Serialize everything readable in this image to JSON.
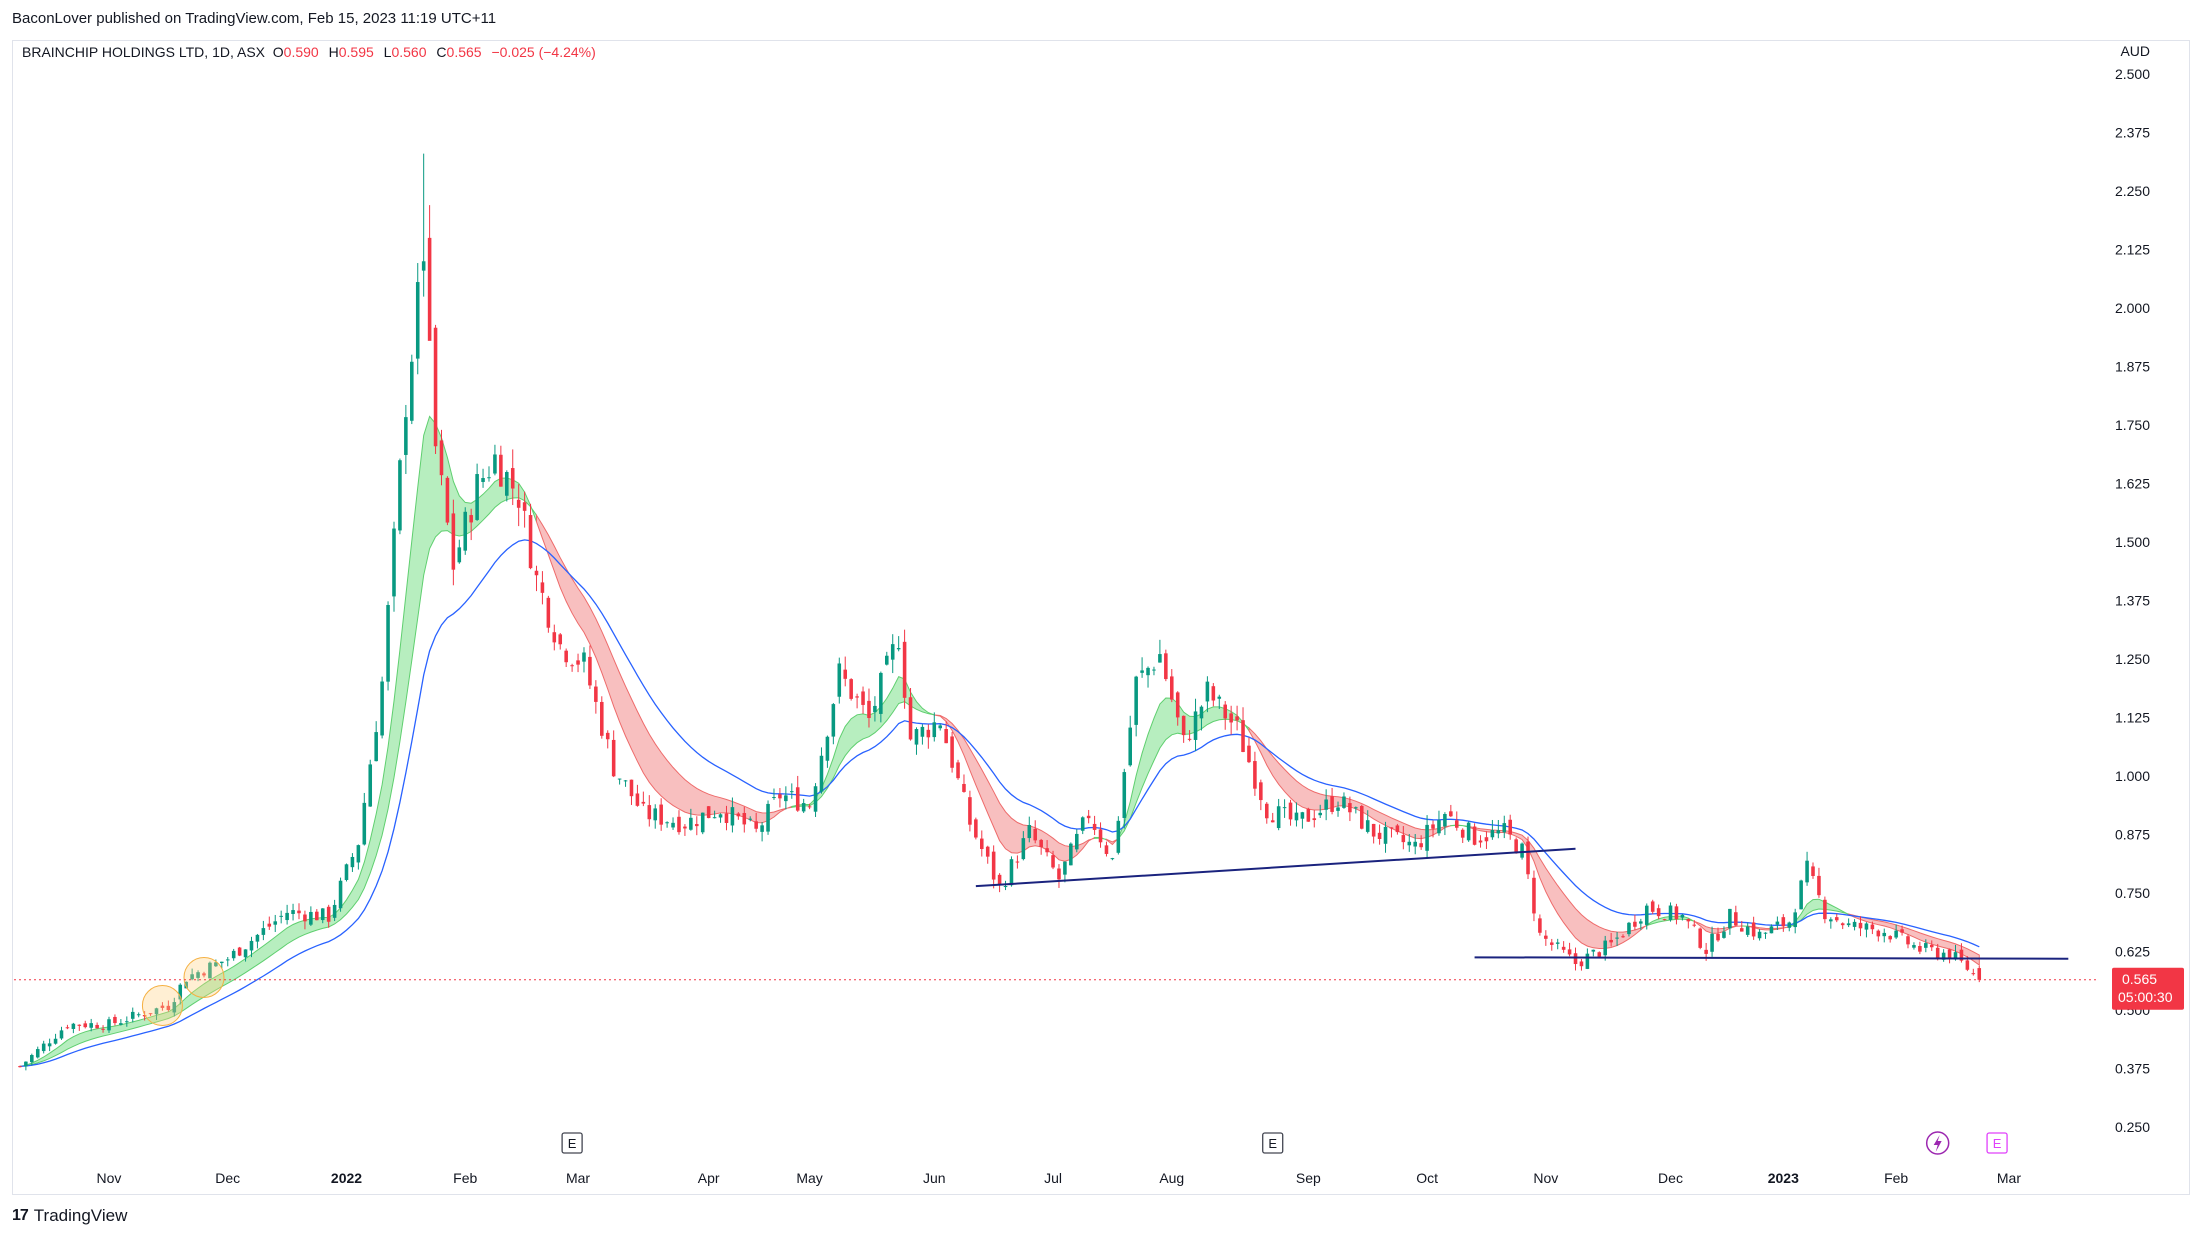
{
  "header": {
    "publisher": "BaconLover published on TradingView.com, Feb 15, 2023 11:19 UTC+11"
  },
  "legend": {
    "symbol": "BRAINCHIP HOLDINGS LTD, 1D, ASX",
    "open_label": "O",
    "open": "0.590",
    "high_label": "H",
    "high": "0.595",
    "low_label": "L",
    "low": "0.560",
    "close_label": "C",
    "close": "0.565",
    "change": "−0.025 (−4.24%)"
  },
  "footer": {
    "brand": "TradingView",
    "logo_icon": "tradingview-logo-icon"
  },
  "colors": {
    "up": "#089981",
    "down": "#f23645",
    "ma": "#2962ff",
    "trend": "#1a237e",
    "band_up": "#7be08a",
    "band_down": "#f28b8b"
  },
  "price_label": {
    "value": "0.565",
    "countdown": "05:00:30"
  },
  "markers": {
    "earnings_label": "E",
    "dividend_icon": "lightning-icon"
  },
  "chart_data": {
    "type": "candlestick",
    "currency": "AUD",
    "y_ticks": [
      "2.500",
      "2.375",
      "2.250",
      "2.125",
      "2.000",
      "1.875",
      "1.750",
      "1.625",
      "1.500",
      "1.375",
      "1.250",
      "1.125",
      "1.000",
      "0.875",
      "0.750",
      "0.625",
      "0.500",
      "0.375",
      "0.250"
    ],
    "ylim": [
      0.18,
      2.53
    ],
    "x_labels": [
      {
        "label": "Nov",
        "i": 15,
        "bold": false
      },
      {
        "label": "Dec",
        "i": 35,
        "bold": false
      },
      {
        "label": "2022",
        "i": 55,
        "bold": true
      },
      {
        "label": "Feb",
        "i": 75,
        "bold": false
      },
      {
        "label": "Mar",
        "i": 94,
        "bold": false
      },
      {
        "label": "Apr",
        "i": 116,
        "bold": false
      },
      {
        "label": "May",
        "i": 133,
        "bold": false
      },
      {
        "label": "Jun",
        "i": 154,
        "bold": false
      },
      {
        "label": "Jul",
        "i": 174,
        "bold": false
      },
      {
        "label": "Aug",
        "i": 194,
        "bold": false
      },
      {
        "label": "Sep",
        "i": 217,
        "bold": false
      },
      {
        "label": "Oct",
        "i": 237,
        "bold": false
      },
      {
        "label": "Nov",
        "i": 257,
        "bold": false
      },
      {
        "label": "Dec",
        "i": 278,
        "bold": false
      },
      {
        "label": "2023",
        "i": 297,
        "bold": true
      },
      {
        "label": "Feb",
        "i": 316,
        "bold": false
      },
      {
        "label": "Mar",
        "i": 335,
        "bold": false
      }
    ],
    "x_range": [
      -1,
      350
    ],
    "close_keypoints": [
      [
        0,
        0.38
      ],
      [
        8,
        0.47
      ],
      [
        15,
        0.47
      ],
      [
        25,
        0.51
      ],
      [
        28,
        0.57
      ],
      [
        35,
        0.61
      ],
      [
        45,
        0.71
      ],
      [
        52,
        0.7
      ],
      [
        57,
        0.86
      ],
      [
        61,
        1.2
      ],
      [
        65,
        1.8
      ],
      [
        68,
        2.12
      ],
      [
        70,
        1.7
      ],
      [
        73,
        1.45
      ],
      [
        77,
        1.62
      ],
      [
        80,
        1.68
      ],
      [
        84,
        1.6
      ],
      [
        87,
        1.42
      ],
      [
        91,
        1.28
      ],
      [
        95,
        1.24
      ],
      [
        100,
        1.02
      ],
      [
        105,
        0.92
      ],
      [
        112,
        0.9
      ],
      [
        118,
        0.93
      ],
      [
        124,
        0.88
      ],
      [
        128,
        0.96
      ],
      [
        133,
        0.94
      ],
      [
        138,
        1.22
      ],
      [
        143,
        1.12
      ],
      [
        148,
        1.3
      ],
      [
        150,
        1.08
      ],
      [
        155,
        1.12
      ],
      [
        160,
        0.9
      ],
      [
        165,
        0.76
      ],
      [
        170,
        0.88
      ],
      [
        175,
        0.78
      ],
      [
        180,
        0.92
      ],
      [
        184,
        0.82
      ],
      [
        188,
        1.2
      ],
      [
        192,
        1.26
      ],
      [
        196,
        1.07
      ],
      [
        200,
        1.18
      ],
      [
        205,
        1.1
      ],
      [
        210,
        0.93
      ],
      [
        215,
        0.9
      ],
      [
        222,
        0.95
      ],
      [
        228,
        0.88
      ],
      [
        235,
        0.85
      ],
      [
        240,
        0.92
      ],
      [
        245,
        0.87
      ],
      [
        250,
        0.88
      ],
      [
        253,
        0.84
      ],
      [
        256,
        0.66
      ],
      [
        262,
        0.6
      ],
      [
        268,
        0.64
      ],
      [
        274,
        0.72
      ],
      [
        280,
        0.7
      ],
      [
        284,
        0.63
      ],
      [
        288,
        0.7
      ],
      [
        293,
        0.66
      ],
      [
        298,
        0.69
      ],
      [
        301,
        0.8
      ],
      [
        304,
        0.71
      ],
      [
        308,
        0.68
      ],
      [
        314,
        0.67
      ],
      [
        320,
        0.63
      ],
      [
        325,
        0.62
      ],
      [
        328,
        0.59
      ],
      [
        330,
        0.565
      ]
    ],
    "last": {
      "open": 0.59,
      "high": 0.595,
      "low": 0.56,
      "close": 0.565
    },
    "trendlines": [
      {
        "x1": 161,
        "y1": 0.765,
        "x2": 262,
        "y2": 0.845
      },
      {
        "x1": 245,
        "y1": 0.613,
        "x2": 345,
        "y2": 0.61
      }
    ],
    "earnings_markers": [
      93,
      211,
      333
    ],
    "dividend_markers": [
      323
    ],
    "highlight_circles": [
      [
        24,
        0.51
      ],
      [
        31,
        0.57
      ]
    ]
  }
}
